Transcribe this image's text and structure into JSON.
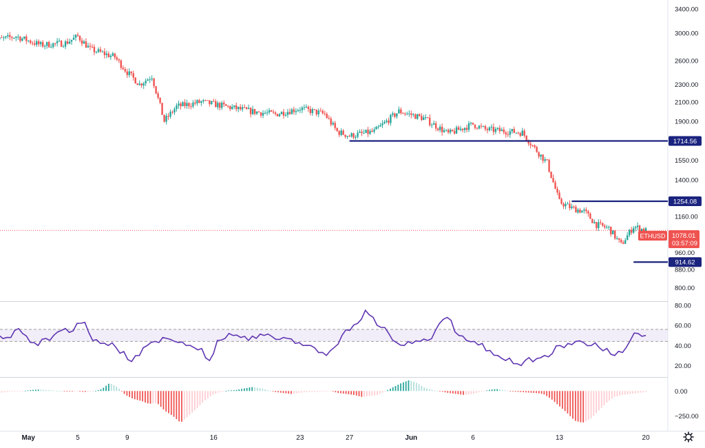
{
  "chart_data": [
    {
      "type": "candlestick",
      "symbol": "ETHUSD",
      "y_scale": "log",
      "ylim": [
        760,
        3500
      ],
      "y_ticks": [
        "3400.00",
        "3000.00",
        "2600.00",
        "2300.00",
        "2100.00",
        "1900.00",
        "1550.00",
        "1400.00",
        "1160.00",
        "960.00",
        "880.00",
        "800.00"
      ],
      "x_ticks": [
        "May",
        "5",
        "9",
        "16",
        "23",
        "27",
        "Jun",
        "6",
        "13",
        "20"
      ],
      "price_path": [
        {
          "x": "Apr 28",
          "y": 2880
        },
        {
          "x": "Apr 30",
          "y": 2950
        },
        {
          "x": "May 2",
          "y": 2820
        },
        {
          "x": "May 4",
          "y": 2850
        },
        {
          "x": "May 5",
          "y": 2950
        },
        {
          "x": "May 6",
          "y": 2760
        },
        {
          "x": "May 8",
          "y": 2650
        },
        {
          "x": "May 9",
          "y": 2450
        },
        {
          "x": "May 10",
          "y": 2300
        },
        {
          "x": "May 11",
          "y": 2400
        },
        {
          "x": "May 12",
          "y": 1900
        },
        {
          "x": "May 13",
          "y": 2050
        },
        {
          "x": "May 15",
          "y": 2100
        },
        {
          "x": "May 17",
          "y": 2050
        },
        {
          "x": "May 19",
          "y": 2000
        },
        {
          "x": "May 21",
          "y": 1970
        },
        {
          "x": "May 23",
          "y": 2030
        },
        {
          "x": "May 25",
          "y": 1970
        },
        {
          "x": "May 26",
          "y": 1800
        },
        {
          "x": "May 27",
          "y": 1760
        },
        {
          "x": "May 29",
          "y": 1800
        },
        {
          "x": "May 31",
          "y": 2000
        },
        {
          "x": "Jun 2",
          "y": 1930
        },
        {
          "x": "Jun 4",
          "y": 1780
        },
        {
          "x": "Jun 6",
          "y": 1870
        },
        {
          "x": "Jun 7",
          "y": 1820
        },
        {
          "x": "Jun 9",
          "y": 1800
        },
        {
          "x": "Jun 10",
          "y": 1790
        },
        {
          "x": "Jun 11",
          "y": 1650
        },
        {
          "x": "Jun 12",
          "y": 1530
        },
        {
          "x": "Jun 13",
          "y": 1250
        },
        {
          "x": "Jun 14",
          "y": 1210
        },
        {
          "x": "Jun 15",
          "y": 1190
        },
        {
          "x": "Jun 16",
          "y": 1110
        },
        {
          "x": "Jun 17",
          "y": 1090
        },
        {
          "x": "Jun 18",
          "y": 1000
        },
        {
          "x": "Jun 19",
          "y": 1100
        },
        {
          "x": "Jun 20",
          "y": 1078
        }
      ],
      "horizontal_levels": [
        {
          "label": "1714.56",
          "value": 1714.56
        },
        {
          "label": "1254.08",
          "value": 1254.08
        },
        {
          "label": "914.62",
          "value": 914.62
        }
      ],
      "last_price": {
        "symbol": "ETHUSD",
        "value": "1078.01",
        "countdown": "03:57:09",
        "y": 1078.01
      },
      "colors": {
        "up": "#26a69a",
        "down": "#ef5350",
        "level": "#1a237e",
        "last": "#ef5350"
      }
    },
    {
      "type": "line",
      "y_ticks": [
        "80.00",
        "60.00",
        "40.00",
        "20.00"
      ],
      "ylim": [
        10,
        82
      ],
      "band": [
        44,
        56
      ],
      "series": [
        {
          "values": [
            45,
            50,
            48,
            55,
            52,
            43,
            40,
            47,
            50,
            55,
            53,
            62,
            63,
            45,
            42,
            40,
            38,
            34,
            24,
            30,
            40,
            44,
            48,
            46,
            43,
            40,
            38,
            37,
            25,
            45,
            47,
            50,
            48,
            45,
            47,
            50,
            49,
            46,
            47,
            42,
            40,
            40,
            33,
            30,
            38,
            50,
            55,
            62,
            75,
            68,
            58,
            52,
            43,
            40,
            42,
            44,
            45,
            55,
            66,
            65,
            50,
            45,
            44,
            42,
            35,
            30,
            25,
            22,
            20,
            28,
            27,
            30,
            32,
            40,
            42,
            44,
            43,
            40,
            38,
            37,
            30,
            33,
            45,
            52,
            50
          ]
        }
      ],
      "color": "#5e35b1"
    },
    {
      "type": "bar",
      "y_ticks": [
        "0.00",
        "−250.00"
      ],
      "ylim": [
        -380,
        120
      ],
      "series": [
        {
          "values": [
            -30,
            -20,
            -10,
            -5,
            0,
            10,
            15,
            10,
            5,
            0,
            -5,
            -5,
            -10,
            -5,
            20,
            80,
            40,
            -40,
            -80,
            -100,
            -130,
            -120,
            -200,
            -250,
            -320,
            -250,
            -180,
            -100,
            -40,
            -10,
            5,
            10,
            25,
            40,
            30,
            10,
            -10,
            -20,
            -30,
            -20,
            -10,
            -10,
            -5,
            0,
            -20,
            -30,
            -40,
            -60,
            -50,
            -40,
            0,
            40,
            80,
            110,
            80,
            30,
            10,
            -5,
            -20,
            -30,
            -40,
            -30,
            -10,
            10,
            20,
            10,
            -5,
            -10,
            -15,
            -20,
            -30,
            -80,
            -150,
            -220,
            -300,
            -320,
            -280,
            -200,
            -120,
            -60,
            -40,
            -30,
            -20,
            -10
          ]
        }
      ],
      "colors": {
        "pos_strong": "#26a69a",
        "pos_weak": "#b2dfdb",
        "neg_strong": "#ef5350",
        "neg_weak": "#ffcdd2"
      }
    }
  ]
}
